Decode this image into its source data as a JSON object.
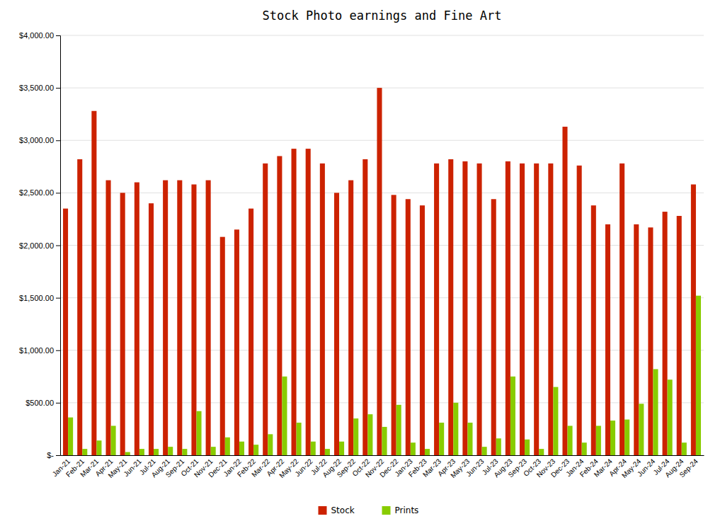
{
  "chart_data": {
    "type": "bar",
    "title": "Stock Photo earnings and Fine Art",
    "categories": [
      "Jan-21",
      "Feb-21",
      "Mar-21",
      "Apr-21",
      "May-21",
      "Jun-21",
      "Jul-21",
      "Aug-21",
      "Sep-21",
      "Oct-21",
      "Nov-21",
      "Dec-21",
      "Jan-22",
      "Feb-22",
      "Mar-22",
      "Apr-22",
      "May-22",
      "Jun-22",
      "Jul-22",
      "Aug-22",
      "Sep-22",
      "Oct-22",
      "Nov-22",
      "Dec-22",
      "Jan-23",
      "Feb-23",
      "Mar-23",
      "Apr-23",
      "May-23",
      "Jun-23",
      "Jul-23",
      "Aug-23",
      "Sep-23",
      "Oct-23",
      "Nov-23",
      "Dec-23",
      "Jan-24",
      "Feb-24",
      "Mar-24",
      "Apr-24",
      "May-24",
      "Jun-24",
      "Jul-24",
      "Aug-24",
      "Sep-24"
    ],
    "series": [
      {
        "name": "Stock",
        "color": "#cc2200",
        "values": [
          2350,
          2820,
          3280,
          2620,
          2500,
          2600,
          2400,
          2620,
          2620,
          2580,
          2620,
          2080,
          2150,
          2350,
          2780,
          2850,
          2920,
          2920,
          2780,
          2500,
          2620,
          2820,
          3500,
          2480,
          2440,
          2380,
          2780,
          2820,
          2800,
          2780,
          2440,
          2800,
          2780,
          2780,
          2780,
          3130,
          2760,
          2380,
          2200,
          2780,
          2200,
          2170,
          2320,
          2280,
          2580
        ]
      },
      {
        "name": "Prints",
        "color": "#88cc00",
        "values": [
          360,
          60,
          140,
          280,
          30,
          60,
          60,
          80,
          60,
          420,
          80,
          170,
          130,
          100,
          200,
          750,
          310,
          130,
          60,
          130,
          350,
          390,
          270,
          480,
          120,
          60,
          310,
          500,
          310,
          80,
          160,
          750,
          150,
          60,
          650,
          280,
          120,
          280,
          330,
          340,
          490,
          820,
          720,
          120,
          1520
        ]
      }
    ],
    "ylim": [
      0,
      4000
    ],
    "yticks": [
      {
        "value": 0,
        "label": "$-"
      },
      {
        "value": 500,
        "label": "$500.00"
      },
      {
        "value": 1000,
        "label": "$1,000.00"
      },
      {
        "value": 1500,
        "label": "$1,500.00"
      },
      {
        "value": 2000,
        "label": "$2,000.00"
      },
      {
        "value": 2500,
        "label": "$2,500.00"
      },
      {
        "value": 3000,
        "label": "$3,000.00"
      },
      {
        "value": 3500,
        "label": "$3,500.00"
      },
      {
        "value": 4000,
        "label": "$4,000.00"
      }
    ],
    "grid": true,
    "legend": "bottom"
  }
}
